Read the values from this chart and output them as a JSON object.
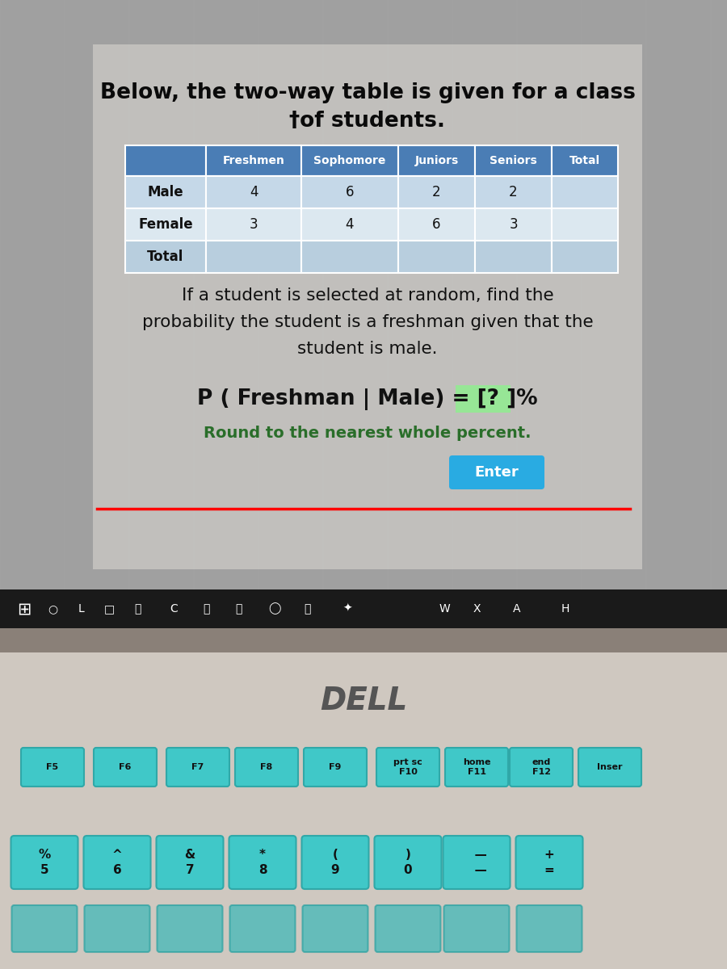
{
  "title_line1": "Below, the two-way table is given for a class",
  "title_line2": "†of students.",
  "col_headers": [
    "Freshmen",
    "Sophomore",
    "Juniors",
    "Seniors",
    "Total"
  ],
  "row_headers": [
    "Male",
    "Female",
    "Total"
  ],
  "table_data": [
    [
      "4",
      "6",
      "2",
      "2",
      ""
    ],
    [
      "3",
      "4",
      "6",
      "3",
      ""
    ],
    [
      "",
      "",
      "",
      "",
      ""
    ]
  ],
  "header_bg": "#4a7db5",
  "header_text": "#ffffff",
  "male_row_bg": "#c5d8e8",
  "female_row_bg": "#dce8f0",
  "total_row_bg": "#b8cede",
  "text_color": "#111111",
  "body_text_line1": "If a student is selected at random, find the",
  "body_text_line2": "probability the student is a freshman given that the",
  "body_text_line3": "student is male.",
  "prob_prefix": "P ( Freshman | Male) = ",
  "prob_bracket": "[? ]",
  "prob_suffix": "%",
  "round_text": "Round to the nearest whole percent.",
  "enter_text": "Enter",
  "enter_bg": "#29abe2",
  "enter_text_color": "#ffffff",
  "screen_bg": "#a8a8a8",
  "laptop_body_color": "#d0c8c0",
  "keyboard_area_color": "#c8beb8",
  "bracket_bg": "#90ee90",
  "round_text_color": "#2a6e2a",
  "dell_color": "#555555",
  "taskbar_bg": "#1a1a1a",
  "fkey_bg": "#40c8c8",
  "fkey_border": "#30a8a8",
  "numkey_bg": "#40c8c8",
  "numkey_border": "#30a8a8"
}
